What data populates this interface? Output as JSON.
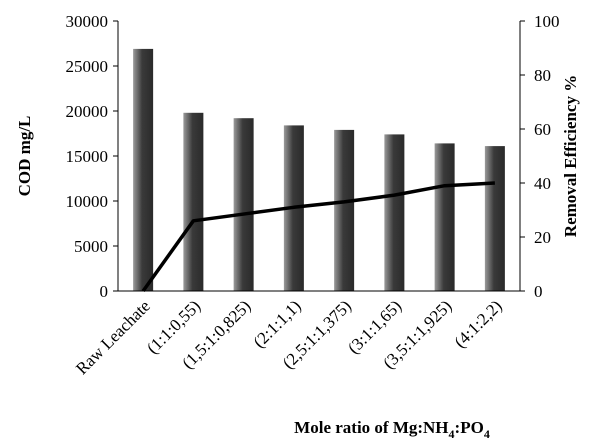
{
  "chart_data": {
    "type": "bar",
    "categories": [
      "Raw Leachate",
      "(1:1:0,55)",
      "(1,5:1:0,825)",
      "(2:1:1,1)",
      "(2,5:1:1,375)",
      "(3:1:1,65)",
      "(3,5:1:1,925)",
      "(4:1:2,2)"
    ],
    "series": [
      {
        "type": "bar",
        "axis": "left",
        "values": [
          26900,
          19800,
          19200,
          18400,
          17900,
          17400,
          16400,
          16100
        ]
      },
      {
        "type": "line",
        "axis": "right",
        "values": [
          0,
          26,
          28.5,
          31,
          33,
          35.5,
          39,
          40
        ]
      }
    ],
    "ylabel": "COD mg/L",
    "y2label": "Removal Efficiency %",
    "xlabel_prefix": "Mole ratio of  Mg:NH",
    "xlabel_sub1": "4",
    "xlabel_mid": ":PO",
    "xlabel_sub2": "4",
    "ylim": [
      0,
      30000
    ],
    "y2lim": [
      0,
      100
    ],
    "yticks": [
      0,
      5000,
      10000,
      15000,
      20000,
      25000,
      30000
    ],
    "y2ticks": [
      0,
      20,
      40,
      60,
      80,
      100
    ],
    "grid": false,
    "colors": {
      "bar_dark": "#3a3a3a",
      "bar_light": "#9a9a9a",
      "line": "#000000"
    }
  }
}
